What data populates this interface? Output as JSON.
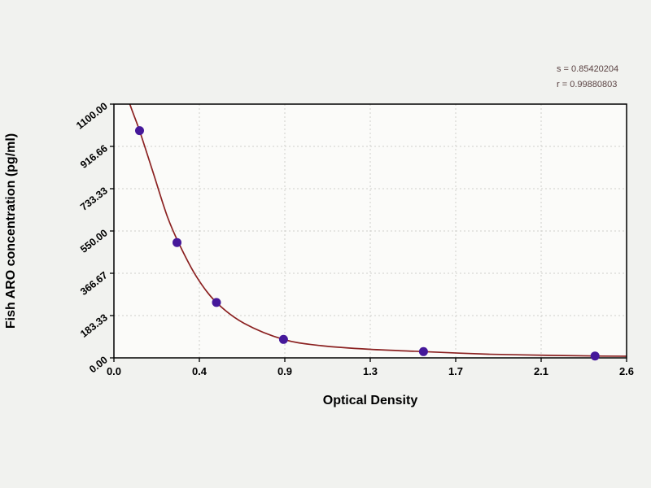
{
  "figure": {
    "background": "#f1f2ef"
  },
  "chart_data": {
    "type": "scatter",
    "title": "",
    "xlabel": "Optical Density",
    "ylabel": "Fish ARO concentration (pg/ml)",
    "xlim": [
      0,
      2.6
    ],
    "ylim": [
      0,
      1100
    ],
    "x_tick_labels": [
      "0.0",
      "0.4",
      "0.9",
      "1.3",
      "1.7",
      "2.1",
      "2.6"
    ],
    "y_tick_labels": [
      "0.00",
      "183.33",
      "366.67",
      "550.00",
      "733.33",
      "916.66",
      "1100.00"
    ],
    "grid": true,
    "legend": "none",
    "annotations": [
      "s = 0.85420204",
      "r = 0.99880803"
    ],
    "series": [
      {
        "name": "standard points",
        "type": "scatter",
        "marker": "circle",
        "x": [
          0.13,
          0.32,
          0.52,
          0.86,
          1.57,
          2.44
        ],
        "y": [
          985,
          500,
          240,
          80,
          27,
          8
        ]
      },
      {
        "name": "fitted curve",
        "type": "line",
        "x": [
          0.035,
          0.06,
          0.13,
          0.2,
          0.27,
          0.33,
          0.42,
          0.52,
          0.66,
          0.86,
          1.05,
          1.3,
          1.57,
          1.9,
          2.2,
          2.44,
          2.62
        ],
        "y": [
          1350,
          1160,
          985,
          800,
          615,
          495,
          350,
          240,
          150,
          80,
          53,
          37,
          27,
          16,
          11,
          8,
          7
        ]
      }
    ],
    "colors": {
      "point": "#45189a",
      "curve": "#8b2121",
      "grid": "#cfcfcc",
      "axis": "#000000",
      "plot_bg": "#fbfbf9",
      "tick_text": "#000000",
      "stats_text": "#5a4242"
    }
  }
}
